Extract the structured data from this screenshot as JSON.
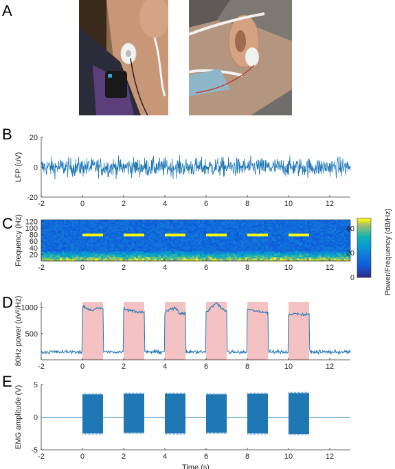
{
  "panels": {
    "a": "A",
    "b": "B",
    "c": "C",
    "d": "D",
    "e": "E"
  },
  "colors": {
    "signal": "#1f77b4",
    "shade": "#f4c2c2"
  },
  "chart_data": [
    {
      "panel": "B",
      "type": "line",
      "title": "",
      "xlabel": "",
      "ylabel": "LFP (uV)",
      "xlim": [
        -2,
        13
      ],
      "ylim": [
        -20,
        20
      ],
      "xticks": [
        -2,
        0,
        2,
        4,
        6,
        8,
        10,
        12
      ],
      "yticks": [
        -20,
        0,
        20
      ],
      "signal": "broadband noise, amplitude approx ±10 uV",
      "grid": false
    },
    {
      "panel": "C",
      "type": "heatmap",
      "title": "",
      "xlabel": "",
      "ylabel": "Frequency (Hz)",
      "xlim": [
        -2,
        13
      ],
      "ylim": [
        0,
        125
      ],
      "xticks": [
        -2,
        0,
        2,
        4,
        6,
        8,
        10,
        12
      ],
      "yticks": [
        20,
        40,
        60,
        80,
        100,
        120
      ],
      "colorbar": {
        "label": "Power/Frequency (dB/Hz)",
        "ticks": [
          0,
          20,
          40
        ],
        "range": [
          0,
          48
        ]
      },
      "bursts": [
        {
          "start": 0,
          "end": 1,
          "freq": 80
        },
        {
          "start": 2,
          "end": 3,
          "freq": 80
        },
        {
          "start": 4,
          "end": 5,
          "freq": 80
        },
        {
          "start": 6,
          "end": 7,
          "freq": 80
        },
        {
          "start": 8,
          "end": 9,
          "freq": 80
        },
        {
          "start": 10,
          "end": 11,
          "freq": 80
        }
      ]
    },
    {
      "panel": "D",
      "type": "line",
      "title": "",
      "xlabel": "",
      "ylabel": "80Hz power (uV²/Hz)",
      "xlim": [
        -2,
        13
      ],
      "ylim": [
        0,
        1100
      ],
      "xticks": [
        -2,
        0,
        2,
        4,
        6,
        8,
        10,
        12
      ],
      "yticks": [
        500,
        1000
      ],
      "baseline": 150,
      "shaded_intervals": [
        [
          0,
          1
        ],
        [
          2,
          3
        ],
        [
          4,
          5
        ],
        [
          6,
          7
        ],
        [
          8,
          9
        ],
        [
          10,
          11
        ]
      ],
      "burst_levels": [
        {
          "start": 0,
          "end": 1,
          "values": [
            1020,
            980,
            940,
            1000,
            960
          ]
        },
        {
          "start": 2,
          "end": 3,
          "values": [
            980,
            950,
            930,
            920,
            900
          ]
        },
        {
          "start": 4,
          "end": 5,
          "values": [
            900,
            960,
            1000,
            880,
            890
          ]
        },
        {
          "start": 6,
          "end": 7,
          "values": [
            900,
            1000,
            1090,
            980,
            930
          ]
        },
        {
          "start": 8,
          "end": 9,
          "values": [
            960,
            950,
            920,
            910,
            900
          ]
        },
        {
          "start": 10,
          "end": 11,
          "values": [
            850,
            880,
            870,
            860,
            880
          ]
        }
      ]
    },
    {
      "panel": "E",
      "type": "line",
      "title": "",
      "xlabel": "Time (s)",
      "ylabel": "EMG amplitude (V)",
      "xlim": [
        -2,
        13
      ],
      "ylim": [
        -5,
        5
      ],
      "xticks": [
        -2,
        0,
        2,
        4,
        6,
        8,
        10,
        12
      ],
      "yticks": [
        -5,
        0,
        5
      ],
      "bursts": [
        {
          "start": 0,
          "end": 1,
          "pos": 3.5,
          "neg": -2.5
        },
        {
          "start": 2,
          "end": 3,
          "pos": 3.6,
          "neg": -2.4
        },
        {
          "start": 4,
          "end": 5,
          "pos": 3.6,
          "neg": -2.5
        },
        {
          "start": 6,
          "end": 7,
          "pos": 3.5,
          "neg": -2.4
        },
        {
          "start": 8,
          "end": 9,
          "pos": 3.6,
          "neg": -2.5
        },
        {
          "start": 10,
          "end": 11,
          "pos": 3.7,
          "neg": -2.6
        }
      ]
    }
  ]
}
